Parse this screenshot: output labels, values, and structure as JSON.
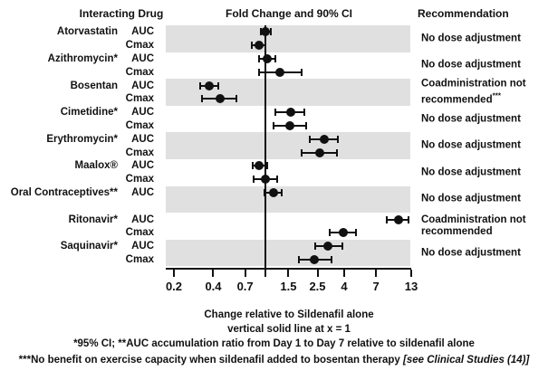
{
  "colors": {
    "band": "#e0e0e0",
    "ink": "#111111",
    "background": "#ffffff"
  },
  "chart_data": {
    "type": "forest",
    "title": "Fold Change and 90% CI",
    "columns": {
      "drug": "Interacting Drug",
      "plot": "Fold Change and 90% CI",
      "recommendation": "Recommendation"
    },
    "x_scale": "log",
    "x_ticks": [
      0.2,
      0.4,
      0.7,
      1,
      1.5,
      2.5,
      4,
      7,
      13
    ],
    "x_tick_labels": [
      "0.2",
      "0.4",
      "0.7",
      "",
      "1.5",
      "2.5",
      "4",
      "7",
      "13"
    ],
    "x_range": [
      0.17,
      14.5
    ],
    "reference_line_x": 1,
    "xlabel_line1": "Change relative to Sildenafil alone",
    "xlabel_line2": "vertical solid line at x = 1",
    "groups": [
      {
        "drug": "Atorvastatin",
        "shaded": true,
        "recommendation": "No dose adjustment",
        "recommendation_sup": "",
        "rows": [
          {
            "metric": "AUC",
            "value": 1.0,
            "ci_lo": 0.93,
            "ci_hi": 1.1
          },
          {
            "metric": "Cmax",
            "value": 0.89,
            "ci_lo": 0.79,
            "ci_hi": 1.0
          }
        ]
      },
      {
        "drug": "Azithromycin*",
        "shaded": false,
        "recommendation": "No dose adjustment",
        "recommendation_sup": "",
        "rows": [
          {
            "metric": "AUC",
            "value": 1.03,
            "ci_lo": 0.9,
            "ci_hi": 1.2
          },
          {
            "metric": "Cmax",
            "value": 1.3,
            "ci_lo": 0.9,
            "ci_hi": 1.88
          }
        ]
      },
      {
        "drug": "Bosentan",
        "shaded": true,
        "recommendation": "Coadministration not recommended",
        "recommendation_sup": "***",
        "rows": [
          {
            "metric": "AUC",
            "value": 0.37,
            "ci_lo": 0.32,
            "ci_hi": 0.44
          },
          {
            "metric": "Cmax",
            "value": 0.45,
            "ci_lo": 0.33,
            "ci_hi": 0.6
          }
        ]
      },
      {
        "drug": "Cimetidine*",
        "shaded": false,
        "recommendation": "No dose adjustment",
        "recommendation_sup": "",
        "rows": [
          {
            "metric": "AUC",
            "value": 1.56,
            "ci_lo": 1.2,
            "ci_hi": 2.0
          },
          {
            "metric": "Cmax",
            "value": 1.54,
            "ci_lo": 1.15,
            "ci_hi": 2.05
          }
        ]
      },
      {
        "drug": "Erythromycin*",
        "shaded": true,
        "recommendation": "No dose adjustment",
        "recommendation_sup": "",
        "rows": [
          {
            "metric": "AUC",
            "value": 2.8,
            "ci_lo": 2.2,
            "ci_hi": 3.6
          },
          {
            "metric": "Cmax",
            "value": 2.6,
            "ci_lo": 1.9,
            "ci_hi": 3.5
          }
        ]
      },
      {
        "drug": "Maalox®",
        "shaded": false,
        "recommendation": "No dose adjustment",
        "recommendation_sup": "",
        "rows": [
          {
            "metric": "AUC",
            "value": 0.9,
            "ci_lo": 0.8,
            "ci_hi": 1.03
          },
          {
            "metric": "Cmax",
            "value": 1.0,
            "ci_lo": 0.81,
            "ci_hi": 1.24
          }
        ]
      },
      {
        "drug": "Oral Contraceptives**",
        "shaded": true,
        "recommendation": "No dose adjustment",
        "recommendation_sup": "",
        "rows": [
          {
            "metric": "AUC",
            "value": 1.15,
            "ci_lo": 0.99,
            "ci_hi": 1.33
          }
        ]
      },
      {
        "drug": "Ritonavir*",
        "shaded": false,
        "recommendation": "Coadministration not recommended",
        "recommendation_sup": "",
        "rows": [
          {
            "metric": "AUC",
            "value": 10.4,
            "ci_lo": 8.5,
            "ci_hi": 12.4
          },
          {
            "metric": "Cmax",
            "value": 3.95,
            "ci_lo": 3.1,
            "ci_hi": 4.9
          }
        ]
      },
      {
        "drug": "Saquinavir*",
        "shaded": true,
        "recommendation": "No dose adjustment",
        "recommendation_sup": "",
        "rows": [
          {
            "metric": "AUC",
            "value": 3.0,
            "ci_lo": 2.4,
            "ci_hi": 3.9
          },
          {
            "metric": "Cmax",
            "value": 2.35,
            "ci_lo": 1.8,
            "ci_hi": 3.2
          }
        ]
      }
    ],
    "footnotes": [
      {
        "text": "*95% CI; **AUC accumulation ratio from Day 1 to Day 7 relative to sildenafil alone",
        "italic_suffix": ""
      },
      {
        "text": "***No benefit on exercise capacity when sildenafil added to bosentan therapy ",
        "italic_suffix": "[see Clinical Studies (14)]"
      }
    ]
  }
}
